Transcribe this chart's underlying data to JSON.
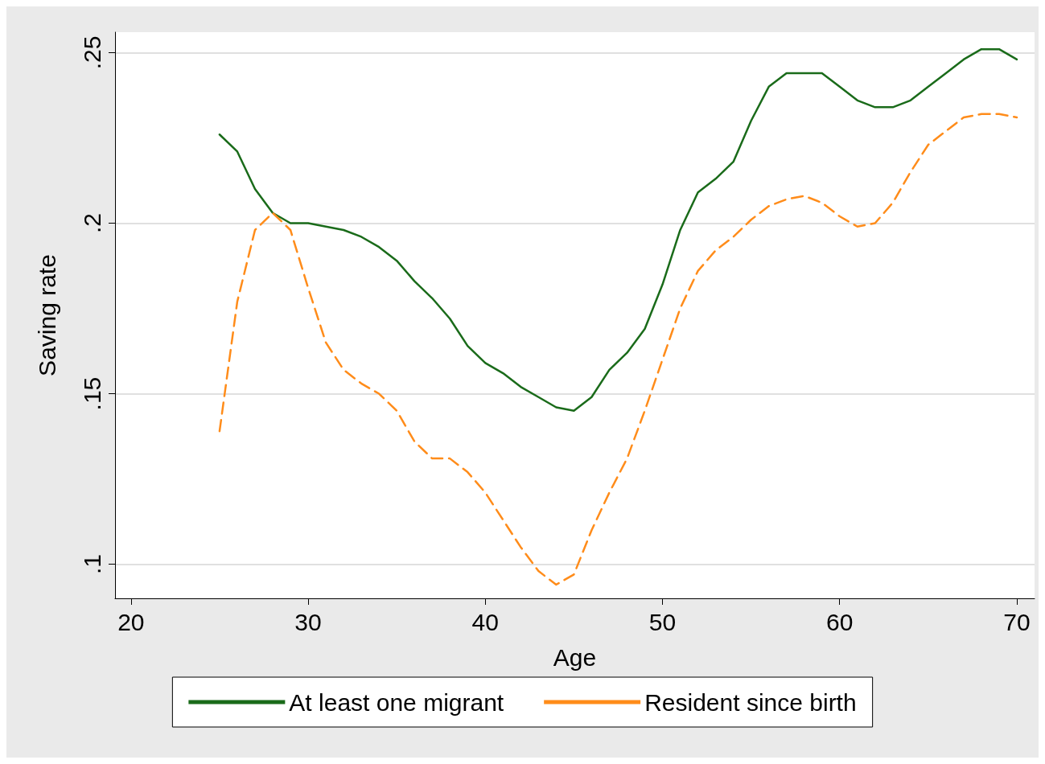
{
  "chart_data": {
    "type": "line",
    "xlabel": "Age",
    "ylabel": "Saving rate",
    "x": [
      25,
      26,
      27,
      28,
      29,
      30,
      31,
      32,
      33,
      34,
      35,
      36,
      37,
      38,
      39,
      40,
      41,
      42,
      43,
      44,
      45,
      46,
      47,
      48,
      49,
      50,
      51,
      52,
      53,
      54,
      55,
      56,
      57,
      58,
      59,
      60,
      61,
      62,
      63,
      64,
      65,
      66,
      67,
      68,
      69,
      70
    ],
    "series": [
      {
        "name": "At least one migrant",
        "color": "#1a6b1a",
        "line_style": "solid",
        "values": [
          0.226,
          0.221,
          0.21,
          0.203,
          0.2,
          0.2,
          0.199,
          0.198,
          0.196,
          0.193,
          0.189,
          0.183,
          0.178,
          0.172,
          0.164,
          0.159,
          0.156,
          0.152,
          0.149,
          0.146,
          0.145,
          0.149,
          0.157,
          0.162,
          0.169,
          0.182,
          0.198,
          0.209,
          0.213,
          0.218,
          0.23,
          0.24,
          0.244,
          0.244,
          0.244,
          0.24,
          0.236,
          0.234,
          0.234,
          0.236,
          0.24,
          0.244,
          0.248,
          0.251,
          0.251,
          0.248
        ]
      },
      {
        "name": "Resident since birth",
        "color": "#ff8c1a",
        "line_style": "dashed",
        "values": [
          0.139,
          0.177,
          0.198,
          0.203,
          0.198,
          0.181,
          0.165,
          0.157,
          0.153,
          0.15,
          0.145,
          0.136,
          0.131,
          0.131,
          0.127,
          0.121,
          0.113,
          0.105,
          0.098,
          0.094,
          0.097,
          0.11,
          0.121,
          0.131,
          0.145,
          0.16,
          0.175,
          0.186,
          0.192,
          0.196,
          0.201,
          0.205,
          0.207,
          0.208,
          0.206,
          0.202,
          0.199,
          0.2,
          0.206,
          0.215,
          0.223,
          0.227,
          0.231,
          0.232,
          0.232,
          0.231
        ]
      }
    ],
    "xlim": [
      19.1,
      71
    ],
    "xticks": [
      20,
      30,
      40,
      50,
      60,
      70
    ],
    "ylim": [
      0.09,
      0.256
    ],
    "yticks": [
      {
        "value": 0.1,
        "label": ".1"
      },
      {
        "value": 0.15,
        "label": ".15"
      },
      {
        "value": 0.2,
        "label": ".2"
      },
      {
        "value": 0.25,
        "label": ".25"
      }
    ],
    "grid": "y",
    "legend": "bottom",
    "marker": "none"
  }
}
